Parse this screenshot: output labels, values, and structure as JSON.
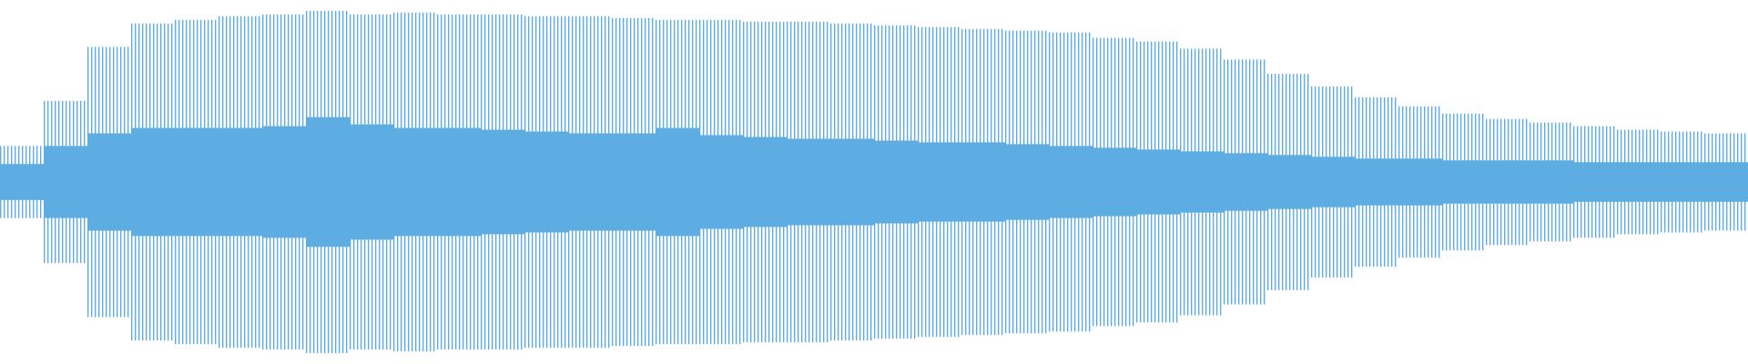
{
  "chart_data": {
    "type": "waveform",
    "color": "#5dade2",
    "ylim": [
      -1,
      1
    ],
    "outer": [
      0.2,
      0.45,
      0.75,
      0.88,
      0.9,
      0.92,
      0.93,
      0.95,
      0.93,
      0.94,
      0.93,
      0.93,
      0.92,
      0.92,
      0.91,
      0.9,
      0.9,
      0.89,
      0.89,
      0.88,
      0.87,
      0.86,
      0.85,
      0.84,
      0.83,
      0.8,
      0.78,
      0.74,
      0.68,
      0.6,
      0.53,
      0.47,
      0.42,
      0.38,
      0.35,
      0.33,
      0.31,
      0.29,
      0.28,
      0.27
    ],
    "inner": [
      0.1,
      0.2,
      0.27,
      0.3,
      0.3,
      0.3,
      0.31,
      0.36,
      0.32,
      0.3,
      0.3,
      0.29,
      0.28,
      0.27,
      0.27,
      0.3,
      0.26,
      0.25,
      0.24,
      0.24,
      0.23,
      0.22,
      0.22,
      0.21,
      0.2,
      0.19,
      0.18,
      0.17,
      0.16,
      0.15,
      0.14,
      0.13,
      0.13,
      0.12,
      0.12,
      0.12,
      0.11,
      0.11,
      0.11,
      0.11
    ]
  }
}
